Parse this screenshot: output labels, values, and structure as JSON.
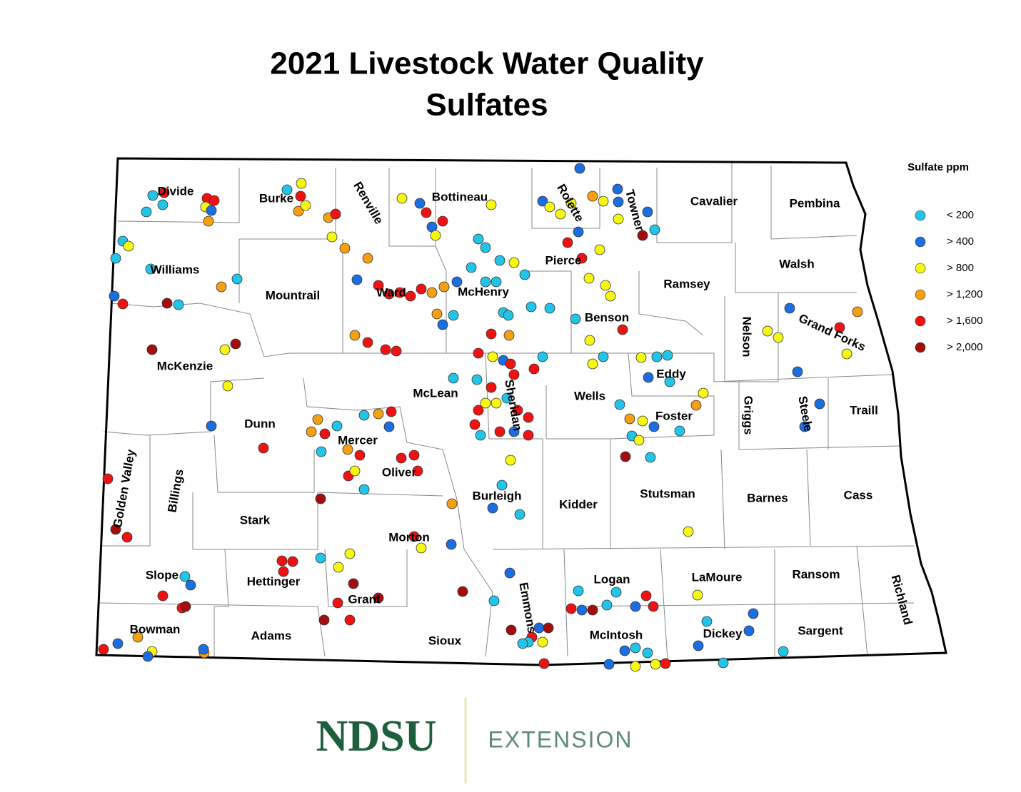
{
  "title": [
    "2021 Livestock Water Quality",
    "Sulfates"
  ],
  "legend": {
    "title": "Sulfate ppm",
    "items": [
      {
        "label": "< 200",
        "color": "#22c4e8"
      },
      {
        "label": "> 400",
        "color": "#1c6ee0"
      },
      {
        "label": "> 800",
        "color": "#f7f714"
      },
      {
        "label": "> 1,200",
        "color": "#f5a011"
      },
      {
        "label": "> 1,600",
        "color": "#ee1212"
      },
      {
        "label": "> 2,000",
        "color": "#a30d0d"
      }
    ]
  },
  "counties": [
    "Divide",
    "Burke",
    "Renville",
    "Bottineau",
    "Rolette",
    "Towner",
    "Cavalier",
    "Pembina",
    "Williams",
    "Mountrail",
    "Ward",
    "McHenry",
    "Pierce",
    "Benson",
    "Ramsey",
    "Walsh",
    "Nelson",
    "Grand Forks",
    "McKenzie",
    "McLean",
    "Sheridan",
    "Wells",
    "Eddy",
    "Foster",
    "Griggs",
    "Steele",
    "Traill",
    "Dunn",
    "Mercer",
    "Oliver",
    "Golden Valley",
    "Billings",
    "Burleigh",
    "Kidder",
    "Stutsman",
    "Barnes",
    "Cass",
    "Stark",
    "Morton",
    "Slope",
    "Hettinger",
    "Grant",
    "Emmons",
    "Logan",
    "LaMoure",
    "Ransom",
    "Richland",
    "Bowman",
    "Adams",
    "Sioux",
    "McIntosh",
    "Dickey",
    "Sargent"
  ],
  "logo": {
    "name": "NDSU",
    "unit": "EXTENSION"
  }
}
